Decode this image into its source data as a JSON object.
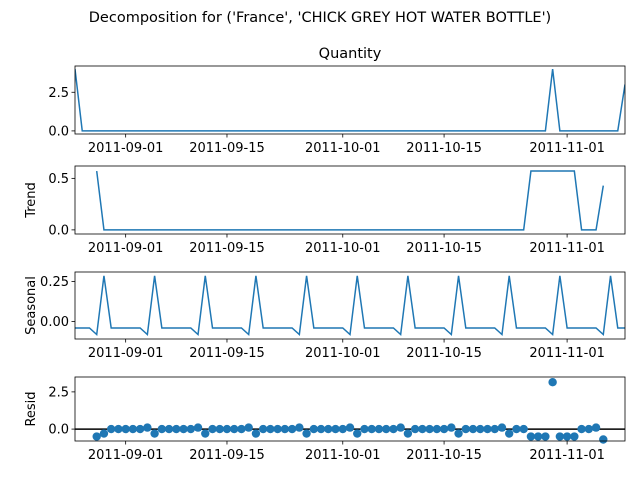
{
  "figure": {
    "suptitle": "Decomposition for ('France', 'CHICK GREY HOT WATER BOTTLE')"
  },
  "colors": {
    "series": "#1f77b4",
    "axis": "#000000",
    "zero_line": "#000000"
  },
  "chart_data": [
    {
      "type": "line",
      "title": "Quantity",
      "ylabel": "",
      "xlim": [
        "2011-08-25",
        "2011-11-09"
      ],
      "ylim": [
        -0.2,
        4.2
      ],
      "yticks": [
        0.0,
        2.5
      ],
      "ytick_labels": [
        "0.0",
        "2.5"
      ],
      "xticks": [
        "2011-09-01",
        "2011-09-15",
        "2011-10-01",
        "2011-10-15",
        "2011-11-01"
      ],
      "start_date": "2011-08-25",
      "step_days": 1,
      "values": [
        4,
        0,
        0,
        0,
        0,
        0,
        0,
        0,
        0,
        0,
        0,
        0,
        0,
        0,
        0,
        0,
        0,
        0,
        0,
        0,
        0,
        0,
        0,
        0,
        0,
        0,
        0,
        0,
        0,
        0,
        0,
        0,
        0,
        0,
        0,
        0,
        0,
        0,
        0,
        0,
        0,
        0,
        0,
        0,
        0,
        0,
        0,
        0,
        0,
        0,
        0,
        0,
        0,
        0,
        0,
        0,
        0,
        0,
        0,
        0,
        0,
        0,
        0,
        0,
        0,
        0,
        4,
        0,
        0,
        0,
        0,
        0,
        0,
        0,
        0,
        0,
        3
      ]
    },
    {
      "type": "line",
      "title": "",
      "ylabel": "Trend",
      "xlim": [
        "2011-08-25",
        "2011-11-09"
      ],
      "ylim": [
        -0.04,
        0.62
      ],
      "yticks": [
        0.0,
        0.5
      ],
      "ytick_labels": [
        "0.0",
        "0.5"
      ],
      "xticks": [
        "2011-09-01",
        "2011-09-15",
        "2011-10-01",
        "2011-10-15",
        "2011-11-01"
      ],
      "start_date": "2011-08-25",
      "step_days": 1,
      "values": [
        null,
        null,
        null,
        0.571,
        0,
        0,
        0,
        0,
        0,
        0,
        0,
        0,
        0,
        0,
        0,
        0,
        0,
        0,
        0,
        0,
        0,
        0,
        0,
        0,
        0,
        0,
        0,
        0,
        0,
        0,
        0,
        0,
        0,
        0,
        0,
        0,
        0,
        0,
        0,
        0,
        0,
        0,
        0,
        0,
        0,
        0,
        0,
        0,
        0,
        0,
        0,
        0,
        0,
        0,
        0,
        0,
        0,
        0,
        0,
        0,
        0,
        0,
        0,
        0.571,
        0.571,
        0.571,
        0.571,
        0.571,
        0.571,
        0.571,
        0,
        0,
        0,
        0.429,
        null,
        null,
        null
      ]
    },
    {
      "type": "line",
      "title": "",
      "ylabel": "Seasonal",
      "xlim": [
        "2011-08-25",
        "2011-11-09"
      ],
      "ylim": [
        -0.11,
        0.31
      ],
      "yticks": [
        0.0,
        0.25
      ],
      "ytick_labels": [
        "0.00",
        "0.25"
      ],
      "xticks": [
        "2011-09-01",
        "2011-09-15",
        "2011-10-01",
        "2011-10-15",
        "2011-11-01"
      ],
      "start_date": "2011-08-25",
      "step_days": 1,
      "values": [
        -0.041,
        -0.041,
        -0.041,
        -0.082,
        0.286,
        -0.041,
        -0.041,
        -0.041,
        -0.041,
        -0.041,
        -0.082,
        0.286,
        -0.041,
        -0.041,
        -0.041,
        -0.041,
        -0.041,
        -0.082,
        0.286,
        -0.041,
        -0.041,
        -0.041,
        -0.041,
        -0.041,
        -0.082,
        0.286,
        -0.041,
        -0.041,
        -0.041,
        -0.041,
        -0.041,
        -0.082,
        0.286,
        -0.041,
        -0.041,
        -0.041,
        -0.041,
        -0.041,
        -0.082,
        0.286,
        -0.041,
        -0.041,
        -0.041,
        -0.041,
        -0.041,
        -0.082,
        0.286,
        -0.041,
        -0.041,
        -0.041,
        -0.041,
        -0.041,
        -0.082,
        0.286,
        -0.041,
        -0.041,
        -0.041,
        -0.041,
        -0.041,
        -0.082,
        0.286,
        -0.041,
        -0.041,
        -0.041,
        -0.041,
        -0.041,
        -0.082,
        0.286,
        -0.041,
        -0.041,
        -0.041,
        -0.041,
        -0.041,
        -0.082,
        0.286,
        -0.041,
        -0.041
      ]
    },
    {
      "type": "scatter",
      "title": "",
      "ylabel": "Resid",
      "xlim": [
        "2011-08-25",
        "2011-11-09"
      ],
      "ylim": [
        -0.8,
        3.5
      ],
      "yticks": [
        0.0,
        2.5
      ],
      "ytick_labels": [
        "0.0",
        "2.5"
      ],
      "xticks": [
        "2011-09-01",
        "2011-09-15",
        "2011-10-01",
        "2011-10-15",
        "2011-11-01"
      ],
      "zero_line": true,
      "start_date": "2011-08-25",
      "step_days": 1,
      "values": [
        null,
        null,
        null,
        -0.5,
        -0.3,
        0,
        0,
        0,
        0,
        0,
        0.1,
        -0.3,
        0,
        0,
        0,
        0,
        0,
        0.1,
        -0.3,
        0,
        0,
        0,
        0,
        0,
        0.1,
        -0.3,
        0,
        0,
        0,
        0,
        0,
        0.1,
        -0.3,
        0,
        0,
        0,
        0,
        0,
        0.1,
        -0.3,
        0,
        0,
        0,
        0,
        0,
        0.1,
        -0.3,
        0,
        0,
        0,
        0,
        0,
        0.1,
        -0.3,
        0,
        0,
        0,
        0,
        0,
        0.1,
        -0.3,
        0,
        0,
        -0.5,
        -0.5,
        -0.5,
        3.15,
        -0.5,
        -0.5,
        -0.5,
        0,
        0,
        0.1,
        -0.7,
        null,
        null,
        null
      ]
    }
  ]
}
